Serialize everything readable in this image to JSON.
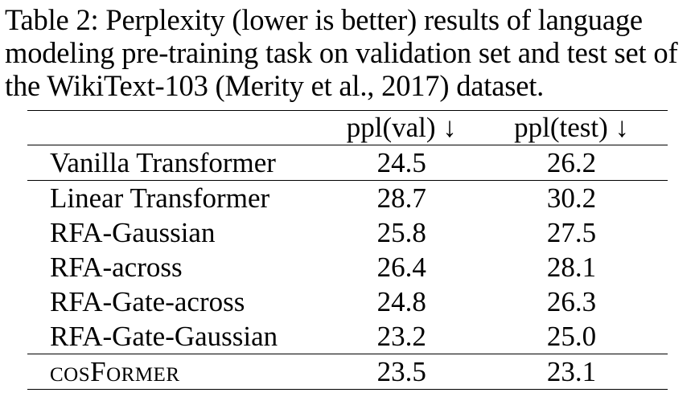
{
  "caption": {
    "label": "Table 2:",
    "text": "Perplexity (lower is better) results of language modeling pre-training task on validation set and test set of the WikiText-103 (Merity et al., 2017) dataset."
  },
  "table": {
    "columns": [
      "",
      "ppl(val) ↓",
      "ppl(test) ↓"
    ],
    "rows": [
      {
        "model": "Vanilla Transformer",
        "val": "24.5",
        "test": "26.2"
      },
      {
        "model": "Linear Transformer",
        "val": "28.7",
        "test": "30.2"
      },
      {
        "model": "RFA-Gaussian",
        "val": "25.8",
        "test": "27.5"
      },
      {
        "model": "RFA-across",
        "val": "26.4",
        "test": "28.1"
      },
      {
        "model": "RFA-Gate-across",
        "val": "24.8",
        "test": "26.3"
      },
      {
        "model": "RFA-Gate-Gaussian",
        "val": "23.2",
        "test": "25.0"
      },
      {
        "model": "cosFormer",
        "val": "23.5",
        "test": "23.1"
      }
    ]
  }
}
